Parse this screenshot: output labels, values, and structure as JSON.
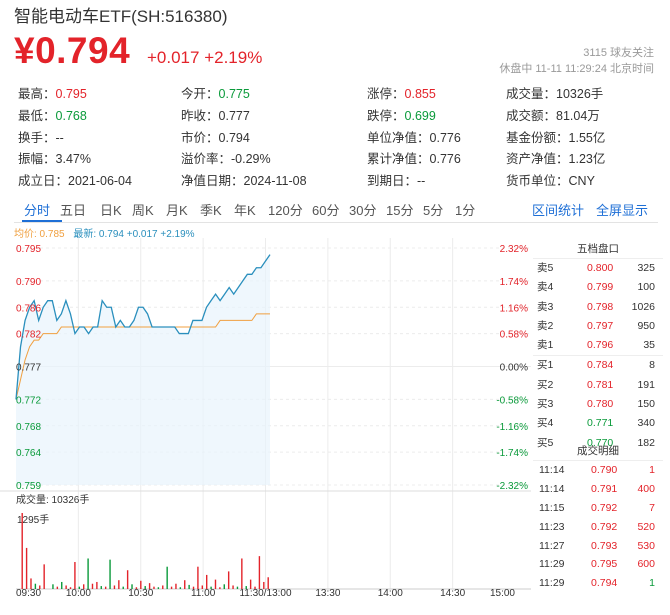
{
  "header": {
    "title": "智能电动车ETF(SH:516380)",
    "price": "¥0.794",
    "change": "+0.017 +2.19%",
    "follow": "3115 球友关注",
    "status": "休盘中 11-11 11:29:24 北京时间"
  },
  "stats": [
    {
      "label": "最高：",
      "value": "0.795",
      "color": "red"
    },
    {
      "label": "今开：",
      "value": "0.775",
      "color": "green"
    },
    {
      "label": "涨停：",
      "value": "0.855",
      "color": "red"
    },
    {
      "label": "成交量：",
      "value": "10326手",
      "color": ""
    },
    {
      "label": "最低：",
      "value": "0.768",
      "color": "green"
    },
    {
      "label": "昨收：",
      "value": "0.777",
      "color": ""
    },
    {
      "label": "跌停：",
      "value": "0.699",
      "color": "green"
    },
    {
      "label": "成交额：",
      "value": "81.04万",
      "color": ""
    },
    {
      "label": "换手：",
      "value": "--",
      "color": ""
    },
    {
      "label": "市价：",
      "value": "0.794",
      "color": ""
    },
    {
      "label": "单位净值：",
      "value": "0.776",
      "color": ""
    },
    {
      "label": "基金份额：",
      "value": "1.55亿",
      "color": ""
    },
    {
      "label": "振幅：",
      "value": "3.47%",
      "color": ""
    },
    {
      "label": "溢价率：",
      "value": "-0.29%",
      "color": ""
    },
    {
      "label": "累计净值：",
      "value": "0.776",
      "color": ""
    },
    {
      "label": "资产净值：",
      "value": "1.23亿",
      "color": ""
    },
    {
      "label": "成立日：",
      "value": "2021-06-04",
      "color": ""
    },
    {
      "label": "净值日期：",
      "value": "2024-11-08",
      "color": ""
    },
    {
      "label": "到期日：",
      "value": "--",
      "color": ""
    },
    {
      "label": "货币单位：",
      "value": "CNY",
      "color": ""
    }
  ],
  "tabs": [
    "分时",
    "五日",
    "日K",
    "周K",
    "月K",
    "季K",
    "年K",
    "120分",
    "60分",
    "30分",
    "15分",
    "5分",
    "1分"
  ],
  "tab_actions": [
    "区间统计",
    "全屏显示"
  ],
  "legend": {
    "avg_label": "均价: 0.785",
    "latest_label": "最新: 0.794 +0.017 +2.19%"
  },
  "colors": {
    "up": "#e3232a",
    "down": "#0a9a3a",
    "accent": "#1e6fd6",
    "avg_line": "#f0a040",
    "price_line": "#2a8fbd"
  },
  "chart_data": {
    "type": "line",
    "price_axis_labels": [
      "0.795",
      "0.790",
      "0.786",
      "0.782",
      "0.777",
      "0.772",
      "0.768",
      "0.764",
      "0.759"
    ],
    "percent_axis_labels": [
      "2.32%",
      "1.74%",
      "1.16%",
      "0.58%",
      "0.00%",
      "-0.58%",
      "-1.16%",
      "-1.74%",
      "-2.32%"
    ],
    "ylim": [
      0.759,
      0.795
    ],
    "prev_close": 0.777,
    "time_labels": [
      "09:30",
      "10:00",
      "10:30",
      "11:00",
      "11:30/13:00",
      "13:30",
      "14:00",
      "14:30",
      "15:00"
    ],
    "series": [
      {
        "name": "最新",
        "values": [
          0.772,
          0.78,
          0.784,
          0.786,
          0.787,
          0.784,
          0.786,
          0.787,
          0.787,
          0.784,
          0.785,
          0.787,
          0.785,
          0.782,
          0.783,
          0.783,
          0.782,
          0.783,
          0.783,
          0.787,
          0.786,
          0.786,
          0.783,
          0.784,
          0.783,
          0.783,
          0.784,
          0.786,
          0.786,
          0.785,
          0.783,
          0.783,
          0.783,
          0.783,
          0.783,
          0.783,
          0.782,
          0.782,
          0.782,
          0.784,
          0.784,
          0.784,
          0.786,
          0.787,
          0.788,
          0.787,
          0.788,
          0.789,
          0.788,
          0.789,
          0.79,
          0.791,
          0.791,
          0.792,
          0.792,
          0.793,
          0.794
        ]
      },
      {
        "name": "均价",
        "values": [
          0.772,
          0.775,
          0.778,
          0.78,
          0.781,
          0.781,
          0.782,
          0.782,
          0.782,
          0.782,
          0.783,
          0.783,
          0.783,
          0.783,
          0.783,
          0.783,
          0.783,
          0.783,
          0.783,
          0.783,
          0.783,
          0.783,
          0.783,
          0.783,
          0.783,
          0.783,
          0.783,
          0.783,
          0.783,
          0.783,
          0.783,
          0.783,
          0.783,
          0.783,
          0.783,
          0.783,
          0.783,
          0.783,
          0.783,
          0.783,
          0.783,
          0.783,
          0.783,
          0.783,
          0.783,
          0.784,
          0.784,
          0.784,
          0.784,
          0.784,
          0.784,
          0.784,
          0.784,
          0.785,
          0.785,
          0.785,
          0.785
        ]
      }
    ],
    "volume_label": "成交量: 10326手",
    "volume_axis_label": "1295手",
    "volume_max": 1295,
    "volumes": [
      {
        "v": 1295,
        "c": "up"
      },
      {
        "v": 700,
        "c": "up"
      },
      {
        "v": 180,
        "c": "up"
      },
      {
        "v": 90,
        "c": "down"
      },
      {
        "v": 60,
        "c": "up"
      },
      {
        "v": 420,
        "c": "up"
      },
      {
        "v": 0,
        "c": "up"
      },
      {
        "v": 80,
        "c": "down"
      },
      {
        "v": 40,
        "c": "up"
      },
      {
        "v": 120,
        "c": "down"
      },
      {
        "v": 60,
        "c": "up"
      },
      {
        "v": 30,
        "c": "up"
      },
      {
        "v": 460,
        "c": "up"
      },
      {
        "v": 40,
        "c": "down"
      },
      {
        "v": 80,
        "c": "up"
      },
      {
        "v": 520,
        "c": "down"
      },
      {
        "v": 90,
        "c": "up"
      },
      {
        "v": 120,
        "c": "up"
      },
      {
        "v": 50,
        "c": "down"
      },
      {
        "v": 40,
        "c": "up"
      },
      {
        "v": 500,
        "c": "down"
      },
      {
        "v": 60,
        "c": "up"
      },
      {
        "v": 150,
        "c": "up"
      },
      {
        "v": 40,
        "c": "down"
      },
      {
        "v": 320,
        "c": "up"
      },
      {
        "v": 80,
        "c": "down"
      },
      {
        "v": 30,
        "c": "up"
      },
      {
        "v": 140,
        "c": "up"
      },
      {
        "v": 50,
        "c": "down"
      },
      {
        "v": 100,
        "c": "up"
      },
      {
        "v": 40,
        "c": "up"
      },
      {
        "v": 30,
        "c": "down"
      },
      {
        "v": 60,
        "c": "up"
      },
      {
        "v": 380,
        "c": "down"
      },
      {
        "v": 40,
        "c": "up"
      },
      {
        "v": 90,
        "c": "up"
      },
      {
        "v": 30,
        "c": "down"
      },
      {
        "v": 150,
        "c": "up"
      },
      {
        "v": 70,
        "c": "down"
      },
      {
        "v": 40,
        "c": "up"
      },
      {
        "v": 380,
        "c": "up"
      },
      {
        "v": 60,
        "c": "up"
      },
      {
        "v": 240,
        "c": "up"
      },
      {
        "v": 40,
        "c": "down"
      },
      {
        "v": 160,
        "c": "up"
      },
      {
        "v": 30,
        "c": "up"
      },
      {
        "v": 80,
        "c": "down"
      },
      {
        "v": 300,
        "c": "up"
      },
      {
        "v": 60,
        "c": "up"
      },
      {
        "v": 40,
        "c": "down"
      },
      {
        "v": 520,
        "c": "up"
      },
      {
        "v": 50,
        "c": "down"
      },
      {
        "v": 160,
        "c": "up"
      },
      {
        "v": 40,
        "c": "up"
      },
      {
        "v": 560,
        "c": "up"
      },
      {
        "v": 120,
        "c": "up"
      },
      {
        "v": 200,
        "c": "up"
      }
    ]
  },
  "orderbook": {
    "title": "五档盘口",
    "asks": [
      {
        "label": "卖5",
        "price": "0.800",
        "vol": "325",
        "color": "red"
      },
      {
        "label": "卖4",
        "price": "0.799",
        "vol": "100",
        "color": "red"
      },
      {
        "label": "卖3",
        "price": "0.798",
        "vol": "1026",
        "color": "red"
      },
      {
        "label": "卖2",
        "price": "0.797",
        "vol": "950",
        "color": "red"
      },
      {
        "label": "卖1",
        "price": "0.796",
        "vol": "35",
        "color": "red"
      }
    ],
    "bids": [
      {
        "label": "买1",
        "price": "0.784",
        "vol": "8",
        "color": "red"
      },
      {
        "label": "买2",
        "price": "0.781",
        "vol": "191",
        "color": "red"
      },
      {
        "label": "买3",
        "price": "0.780",
        "vol": "150",
        "color": "red"
      },
      {
        "label": "买4",
        "price": "0.771",
        "vol": "340",
        "color": "green"
      },
      {
        "label": "买5",
        "price": "0.770",
        "vol": "182",
        "color": "green"
      }
    ]
  },
  "deals": {
    "title": "成交明细",
    "rows": [
      {
        "time": "11:14",
        "price": "0.790",
        "vol": "1",
        "vcolor": "red"
      },
      {
        "time": "11:14",
        "price": "0.791",
        "vol": "400",
        "vcolor": "red"
      },
      {
        "time": "11:15",
        "price": "0.792",
        "vol": "7",
        "vcolor": "red"
      },
      {
        "time": "11:23",
        "price": "0.792",
        "vol": "520",
        "vcolor": "red"
      },
      {
        "time": "11:27",
        "price": "0.793",
        "vol": "530",
        "vcolor": "red"
      },
      {
        "time": "11:29",
        "price": "0.795",
        "vol": "600",
        "vcolor": "red"
      },
      {
        "time": "11:29",
        "price": "0.794",
        "vol": "1",
        "vcolor": "green"
      }
    ]
  }
}
